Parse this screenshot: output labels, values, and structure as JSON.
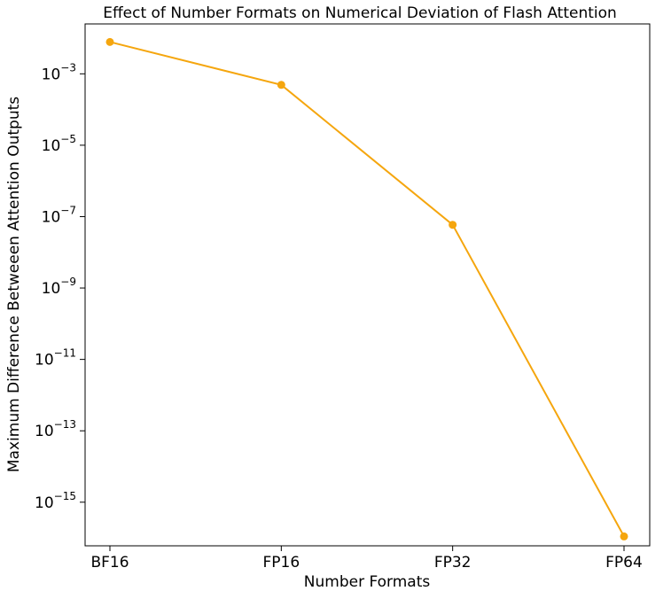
{
  "chart_data": {
    "type": "line",
    "title": "Effect of Number Formats on Numerical Deviation of Flash Attention",
    "xlabel": "Number Formats",
    "ylabel": "Maximum Difference Betweeen Attention Outputs",
    "categories": [
      "BF16",
      "FP16",
      "FP32",
      "FP64"
    ],
    "series": [
      {
        "values": [
          0.0078,
          0.00049,
          5.9e-08,
          1.1e-16
        ]
      }
    ],
    "yscale": "log",
    "ylim": [
      6e-17,
      0.025
    ],
    "yticks": [
      {
        "base": "10",
        "exp": "−3",
        "value": 0.001
      },
      {
        "base": "10",
        "exp": "−5",
        "value": 1e-05
      },
      {
        "base": "10",
        "exp": "−7",
        "value": 1e-07
      },
      {
        "base": "10",
        "exp": "−9",
        "value": 1e-09
      },
      {
        "base": "10",
        "exp": "−11",
        "value": 1e-11
      },
      {
        "base": "10",
        "exp": "−13",
        "value": 1e-13
      },
      {
        "base": "10",
        "exp": "−15",
        "value": 1e-15
      }
    ],
    "grid": false,
    "legend": "none",
    "line_color": "#f5a60e",
    "marker": "circle"
  }
}
